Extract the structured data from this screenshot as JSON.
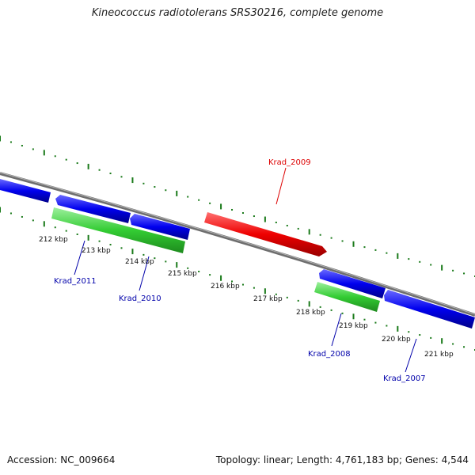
{
  "title": "Kineococcus radiotolerans SRS30216, complete genome",
  "accession": "Accession: NC_009664",
  "summary": "Topology: linear; Length: 4,761,183 bp; Genes: 4,544",
  "colors": {
    "backbone": "#808080",
    "cds_forward": "#0000ee",
    "cds_reverse": "#0000ee",
    "gene": "#33cc33",
    "highlight": "#ee0000",
    "ruler": "#1a7a1a",
    "label_blue": "#0000aa",
    "label_red": "#dd0000"
  },
  "ticks": [
    "212 kbp",
    "213 kbp",
    "214 kbp",
    "215 kbp",
    "216 kbp",
    "217 kbp",
    "218 kbp",
    "219 kbp",
    "220 kbp",
    "221 kbp"
  ],
  "labels": {
    "krad_2009": "Krad_2009",
    "krad_2011": "Krad_2011",
    "krad_2010": "Krad_2010",
    "krad_2008": "Krad_2008",
    "krad_2007": "Krad_2007"
  }
}
